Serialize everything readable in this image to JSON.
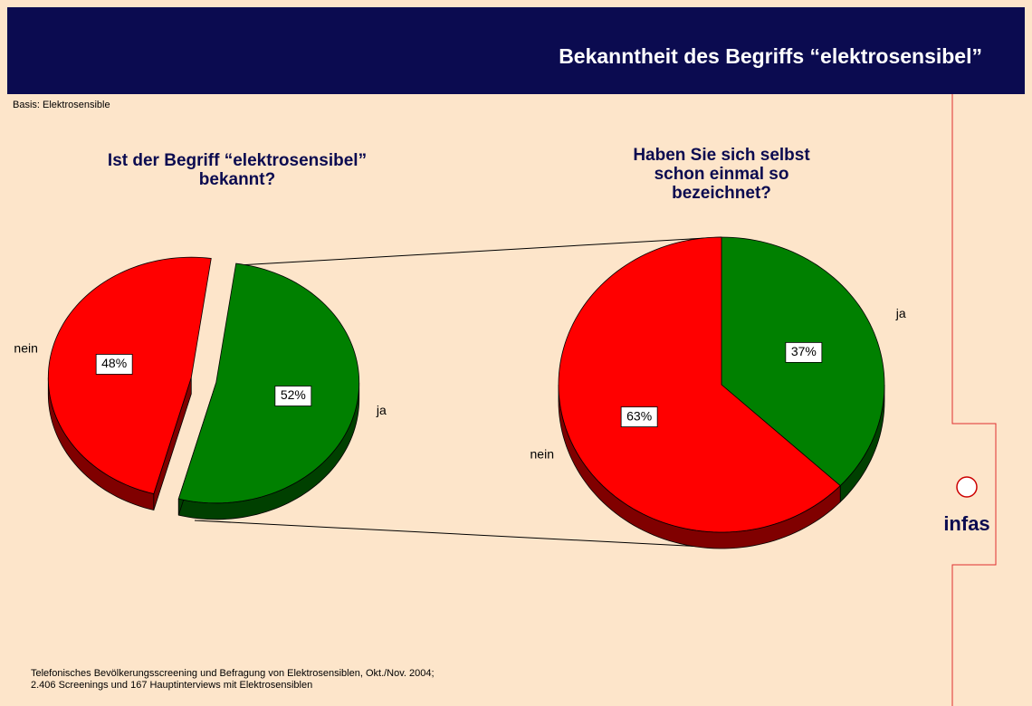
{
  "header": {
    "title": "Bekanntheit des Begriffs “elektrosensibel”"
  },
  "basis": "Basis: Elektrosensible",
  "footnote": [
    "Telefonisches Bevölkerungsscreening und Befragung von Elektrosensiblen, Okt./Nov. 2004;",
    "2.406 Screenings und 167 Hauptinterviews mit Elektrosensiblen"
  ],
  "logo": "infas",
  "chart_data": [
    {
      "type": "pie",
      "title": [
        "Ist der Begriff “elektrosensibel”",
        "bekannt?"
      ],
      "categories": [
        "ja",
        "nein"
      ],
      "values": [
        52,
        48
      ],
      "value_labels": [
        "52%",
        "48%"
      ],
      "colors": [
        "#008000",
        "#ff0000"
      ],
      "exploded": true
    },
    {
      "type": "pie",
      "title": [
        "Haben Sie sich selbst",
        "schon einmal so",
        "bezeichnet?"
      ],
      "categories": [
        "ja",
        "nein"
      ],
      "values": [
        37,
        63
      ],
      "value_labels": [
        "37%",
        "63%"
      ],
      "colors": [
        "#008000",
        "#ff0000"
      ],
      "exploded": false
    }
  ]
}
